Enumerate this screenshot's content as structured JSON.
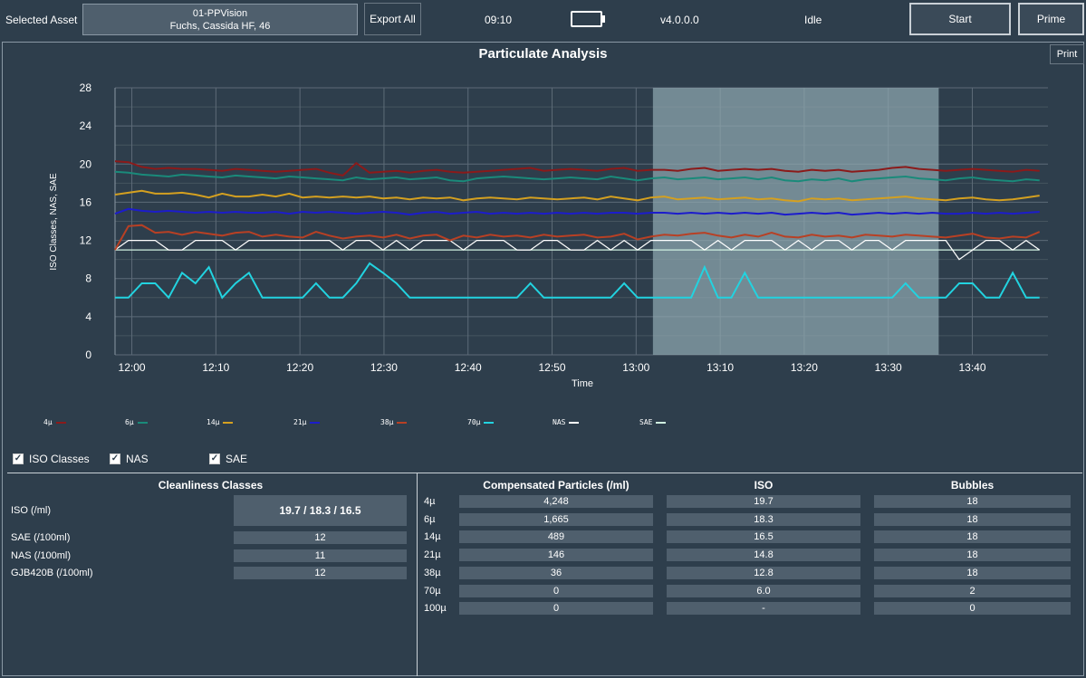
{
  "topbar": {
    "selected_asset_label": "Selected Asset",
    "asset_name": "01-PPVision",
    "asset_fluid": "Fuchs, Cassida HF, 46",
    "export_all": "Export All",
    "clock": "09:10",
    "battery_icon": "battery-full-icon",
    "version": "v4.0.0.0",
    "status": "Idle",
    "start": "Start",
    "prime": "Prime"
  },
  "panel": {
    "title": "Particulate Analysis",
    "print": "Print"
  },
  "chart_data": {
    "type": "line",
    "ylabel": "ISO Classes, NAS, SAE",
    "xlabel": "Time",
    "ylim": [
      0,
      28
    ],
    "yticks": [
      "0",
      "4",
      "8",
      "12",
      "16",
      "20",
      "24",
      "28"
    ],
    "xlim": [
      "11:58",
      "13:49"
    ],
    "xticks": [
      "12:00",
      "12:10",
      "12:20",
      "12:30",
      "12:40",
      "12:50",
      "13:00",
      "13:10",
      "13:20",
      "13:30",
      "13:40"
    ],
    "grid": true,
    "highlight_range": [
      "13:02",
      "13:36"
    ],
    "colors": {
      "highlight": "#8fa7b0"
    },
    "series": [
      {
        "name": "4µ",
        "color": "#8b1a1a",
        "values": [
          20.3,
          20.2,
          19.7,
          19.5,
          19.6,
          19.5,
          19.5,
          19.4,
          19.3,
          19.5,
          19.4,
          19.3,
          19.2,
          19.3,
          19.4,
          19.5,
          19.1,
          18.8,
          20.1,
          19.1,
          19.2,
          19.3,
          19.1,
          19.3,
          19.4,
          19.2,
          19.1,
          19.2,
          19.3,
          19.4,
          19.5,
          19.6,
          19.3,
          19.4,
          19.5,
          19.4,
          19.3,
          19.5,
          19.6,
          19.3,
          19.4,
          19.4,
          19.3,
          19.5,
          19.6,
          19.3,
          19.4,
          19.5,
          19.4,
          19.5,
          19.3,
          19.2,
          19.4,
          19.3,
          19.4,
          19.2,
          19.3,
          19.4,
          19.6,
          19.7,
          19.5,
          19.4,
          19.3,
          19.4,
          19.5,
          19.4,
          19.3,
          19.2,
          19.4,
          19.3
        ]
      },
      {
        "name": "6µ",
        "color": "#1a8a7a",
        "values": [
          19.2,
          19.1,
          18.9,
          18.8,
          18.7,
          18.9,
          18.8,
          18.7,
          18.6,
          18.8,
          18.7,
          18.6,
          18.5,
          18.7,
          18.6,
          18.5,
          18.4,
          18.3,
          18.6,
          18.4,
          18.5,
          18.6,
          18.4,
          18.5,
          18.6,
          18.3,
          18.2,
          18.5,
          18.6,
          18.7,
          18.6,
          18.5,
          18.4,
          18.5,
          18.6,
          18.5,
          18.4,
          18.7,
          18.5,
          18.3,
          18.5,
          18.6,
          18.4,
          18.5,
          18.6,
          18.4,
          18.5,
          18.6,
          18.4,
          18.6,
          18.3,
          18.2,
          18.4,
          18.3,
          18.5,
          18.2,
          18.4,
          18.5,
          18.6,
          18.7,
          18.5,
          18.4,
          18.3,
          18.5,
          18.6,
          18.4,
          18.3,
          18.2,
          18.4,
          18.3
        ]
      },
      {
        "name": "14µ",
        "color": "#d4a020",
        "values": [
          16.8,
          17.0,
          17.2,
          16.9,
          16.9,
          17.0,
          16.8,
          16.5,
          16.9,
          16.6,
          16.6,
          16.8,
          16.6,
          16.9,
          16.5,
          16.6,
          16.5,
          16.6,
          16.5,
          16.6,
          16.4,
          16.5,
          16.3,
          16.5,
          16.4,
          16.5,
          16.2,
          16.4,
          16.5,
          16.4,
          16.3,
          16.5,
          16.4,
          16.3,
          16.4,
          16.5,
          16.3,
          16.6,
          16.4,
          16.2,
          16.5,
          16.6,
          16.3,
          16.4,
          16.5,
          16.3,
          16.4,
          16.5,
          16.3,
          16.4,
          16.2,
          16.1,
          16.4,
          16.3,
          16.4,
          16.2,
          16.3,
          16.4,
          16.5,
          16.6,
          16.4,
          16.3,
          16.2,
          16.4,
          16.5,
          16.3,
          16.2,
          16.3,
          16.5,
          16.7
        ]
      },
      {
        "name": "21µ",
        "color": "#1c1ccc",
        "values": [
          14.8,
          15.3,
          15.1,
          15.0,
          15.1,
          15.0,
          14.9,
          15.0,
          14.9,
          15.0,
          14.9,
          14.9,
          15.0,
          14.8,
          15.0,
          14.9,
          15.0,
          14.9,
          14.8,
          14.9,
          15.0,
          14.9,
          14.7,
          14.9,
          15.0,
          14.8,
          14.9,
          15.0,
          14.8,
          14.9,
          14.8,
          14.9,
          14.8,
          14.9,
          14.8,
          14.9,
          14.8,
          14.9,
          14.9,
          14.8,
          14.9,
          14.9,
          14.8,
          14.9,
          14.8,
          14.9,
          14.8,
          14.9,
          14.8,
          14.9,
          14.7,
          14.8,
          14.9,
          14.8,
          14.9,
          14.7,
          14.8,
          14.9,
          14.8,
          14.9,
          14.8,
          14.9,
          14.8,
          14.8,
          14.9,
          14.8,
          14.9,
          14.8,
          14.9,
          15.0
        ]
      },
      {
        "name": "38µ",
        "color": "#b84024",
        "values": [
          11.0,
          13.5,
          13.6,
          12.8,
          12.9,
          12.6,
          12.9,
          12.7,
          12.5,
          12.8,
          12.9,
          12.4,
          12.6,
          12.4,
          12.3,
          12.9,
          12.5,
          12.2,
          12.4,
          12.5,
          12.3,
          12.6,
          12.2,
          12.5,
          12.6,
          12.0,
          12.5,
          12.3,
          12.6,
          12.4,
          12.5,
          12.3,
          12.6,
          12.4,
          12.5,
          12.6,
          12.3,
          12.4,
          12.7,
          12.1,
          12.4,
          12.6,
          12.5,
          12.7,
          12.8,
          12.5,
          12.3,
          12.6,
          12.4,
          12.8,
          12.4,
          12.3,
          12.6,
          12.4,
          12.5,
          12.3,
          12.6,
          12.5,
          12.4,
          12.6,
          12.5,
          12.4,
          12.3,
          12.5,
          12.7,
          12.3,
          12.2,
          12.4,
          12.3,
          12.9
        ]
      },
      {
        "name": "70µ",
        "color": "#22d3e0",
        "values": [
          6.0,
          6.0,
          7.5,
          7.5,
          6.0,
          8.6,
          7.5,
          9.2,
          6.0,
          7.5,
          8.6,
          6.0,
          6.0,
          6.0,
          6.0,
          7.5,
          6.0,
          6.0,
          7.5,
          9.6,
          8.6,
          7.5,
          6.0,
          6.0,
          6.0,
          6.0,
          6.0,
          6.0,
          6.0,
          6.0,
          6.0,
          7.5,
          6.0,
          6.0,
          6.0,
          6.0,
          6.0,
          6.0,
          7.5,
          6.0,
          6.0,
          6.0,
          6.0,
          6.0,
          9.2,
          6.0,
          6.0,
          8.6,
          6.0,
          6.0,
          6.0,
          6.0,
          6.0,
          6.0,
          6.0,
          6.0,
          6.0,
          6.0,
          6.0,
          7.5,
          6.0,
          6.0,
          6.0,
          7.5,
          7.5,
          6.0,
          6.0,
          8.6,
          6.0,
          6.0
        ]
      },
      {
        "name": "NAS",
        "color": "#ffffff",
        "values": [
          11,
          12,
          12,
          12,
          11,
          11,
          12,
          12,
          12,
          11,
          12,
          12,
          12,
          12,
          12,
          12,
          12,
          11,
          12,
          12,
          11,
          12,
          11,
          12,
          12,
          12,
          11,
          12,
          12,
          12,
          11,
          11,
          12,
          12,
          11,
          11,
          12,
          11,
          12,
          11,
          12,
          12,
          12,
          12,
          11,
          12,
          11,
          12,
          12,
          12,
          11,
          12,
          11,
          12,
          12,
          11,
          12,
          12,
          11,
          12,
          12,
          12,
          12,
          10,
          11,
          12,
          12,
          11,
          12,
          11
        ]
      },
      {
        "name": "SAE",
        "color": "#d0f0e0",
        "values": [
          11,
          11,
          11,
          11,
          11,
          11,
          11,
          11,
          11,
          11,
          11,
          11,
          11,
          11,
          11,
          11,
          11,
          11,
          11,
          11,
          11,
          11,
          11,
          11,
          11,
          11,
          11,
          11,
          11,
          11,
          11,
          11,
          11,
          11,
          11,
          11,
          11,
          11,
          11,
          11,
          11,
          11,
          11,
          11,
          11,
          11,
          11,
          11,
          11,
          11,
          11,
          11,
          11,
          11,
          11,
          11,
          11,
          11,
          11,
          11,
          11,
          11,
          11,
          11,
          11,
          11,
          11,
          11,
          11,
          11
        ]
      }
    ]
  },
  "toggles": [
    {
      "label": "ISO Classes",
      "checked": true
    },
    {
      "label": "NAS",
      "checked": true
    },
    {
      "label": "SAE",
      "checked": true
    }
  ],
  "cleanliness": {
    "title": "Cleanliness Classes",
    "iso_label": "ISO (/ml)",
    "iso_value": "19.7 / 18.3 / 16.5",
    "rows": [
      {
        "label": "SAE (/100ml)",
        "value": "12"
      },
      {
        "label": "NAS (/100ml)",
        "value": "11"
      },
      {
        "label": "GJB420B (/100ml)",
        "value": "12"
      }
    ]
  },
  "particles": {
    "headers": {
      "compensated": "Compensated Particles (/ml)",
      "iso": "ISO",
      "bubbles": "Bubbles"
    },
    "rows": [
      {
        "size": "4µ",
        "count": "4,248",
        "iso": "19.7",
        "bubbles": "18"
      },
      {
        "size": "6µ",
        "count": "1,665",
        "iso": "18.3",
        "bubbles": "18"
      },
      {
        "size": "14µ",
        "count": "489",
        "iso": "16.5",
        "bubbles": "18"
      },
      {
        "size": "21µ",
        "count": "146",
        "iso": "14.8",
        "bubbles": "18"
      },
      {
        "size": "38µ",
        "count": "36",
        "iso": "12.8",
        "bubbles": "18"
      },
      {
        "size": "70µ",
        "count": "0",
        "iso": "6.0",
        "bubbles": "2"
      },
      {
        "size": "100µ",
        "count": "0",
        "iso": "-",
        "bubbles": "0"
      }
    ]
  }
}
